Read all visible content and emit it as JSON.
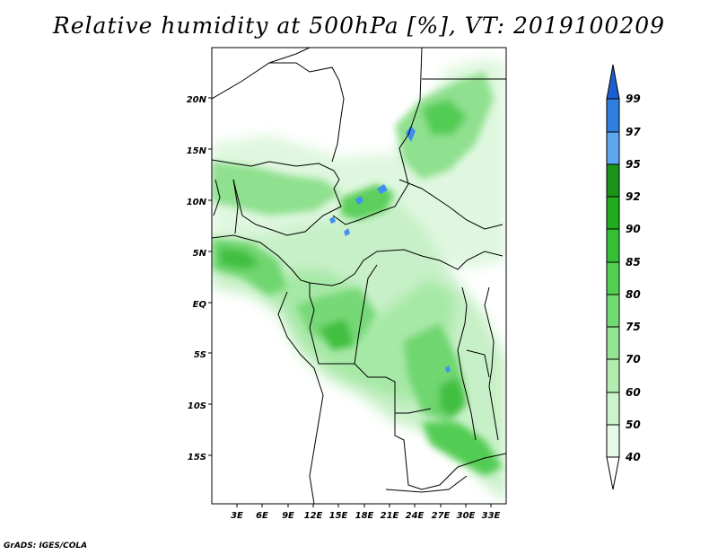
{
  "title": "Relative humidity at 500hPa [%], VT: 2019100209",
  "credit": "GrADS: IGES/COLA",
  "map": {
    "lon_range": [
      0,
      34.5
    ],
    "lat_range": [
      -20,
      24.5
    ],
    "lat_ticks": [
      "20N",
      "15N",
      "10N",
      "5N",
      "EQ",
      "5S",
      "10S",
      "15S"
    ],
    "lon_ticks": [
      "3E",
      "6E",
      "9E",
      "12E",
      "15E",
      "18E",
      "21E",
      "24E",
      "27E",
      "30E",
      "33E"
    ]
  },
  "colorbar": {
    "levels": [
      "40",
      "50",
      "60",
      "70",
      "75",
      "80",
      "85",
      "90",
      "92",
      "95",
      "97",
      "99"
    ],
    "colors": [
      "#ffffff",
      "#e6f9e6",
      "#cdf3cd",
      "#b1ecb1",
      "#93e393",
      "#72da72",
      "#52d052",
      "#35c135",
      "#1fad1f",
      "#1a951a",
      "#5ea7ef",
      "#2f7fe0",
      "#1a5fcf"
    ]
  }
}
